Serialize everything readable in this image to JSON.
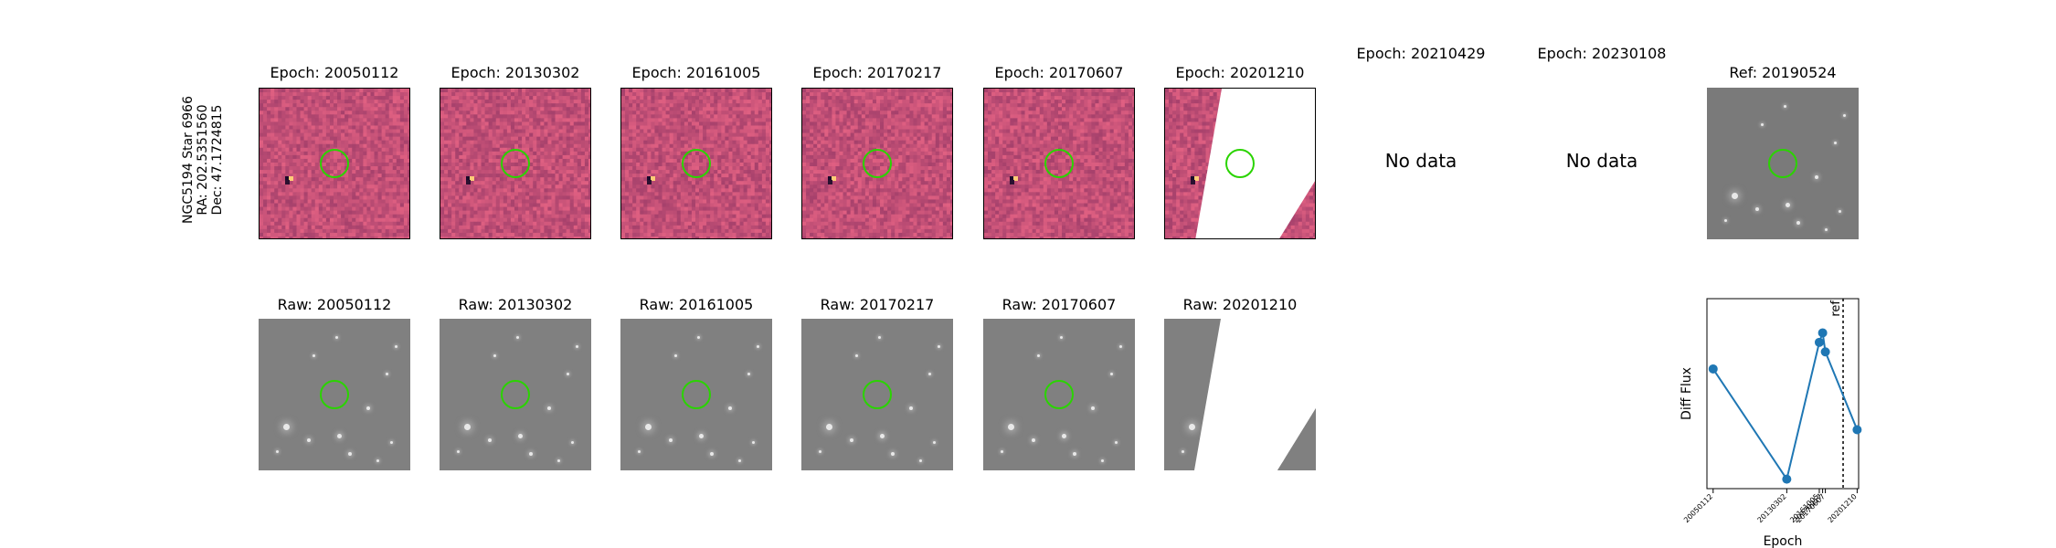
{
  "side_label": [
    "NGC5194 Star 6966",
    "RA: 202.5351560",
    "Dec: 47.1724815"
  ],
  "diff_titles": [
    "Epoch: 20050112",
    "Epoch: 20130302",
    "Epoch: 20161005",
    "Epoch: 20170217",
    "Epoch: 20170607",
    "Epoch: 20201210",
    "Epoch: 20210429",
    "Epoch: 20230108"
  ],
  "no_data_text": "No data",
  "ref_title": "Ref: 20190524",
  "raw_titles": [
    "Raw: 20050112",
    "Raw: 20130302",
    "Raw: 20161005",
    "Raw: 20170217",
    "Raw: 20170607",
    "Raw: 20201210"
  ],
  "colors": {
    "circle": "#2ad400",
    "line": "#1f77b4",
    "diff_base": "#b8407a"
  },
  "chart_data": {
    "type": "line",
    "x": [
      "20050112",
      "20130302",
      "20161005",
      "20170217",
      "20170607",
      "20201210"
    ],
    "x_dates": [
      "2005-01-12",
      "2013-03-02",
      "2016-10-05",
      "2017-02-17",
      "2017-06-07",
      "2020-12-10"
    ],
    "y": [
      0.63,
      0.05,
      0.77,
      0.82,
      0.72,
      0.31
    ],
    "xlabel": "Epoch",
    "ylabel": "Diff Flux",
    "ref_line": {
      "date": "2019-05-24",
      "label": "ref"
    }
  }
}
